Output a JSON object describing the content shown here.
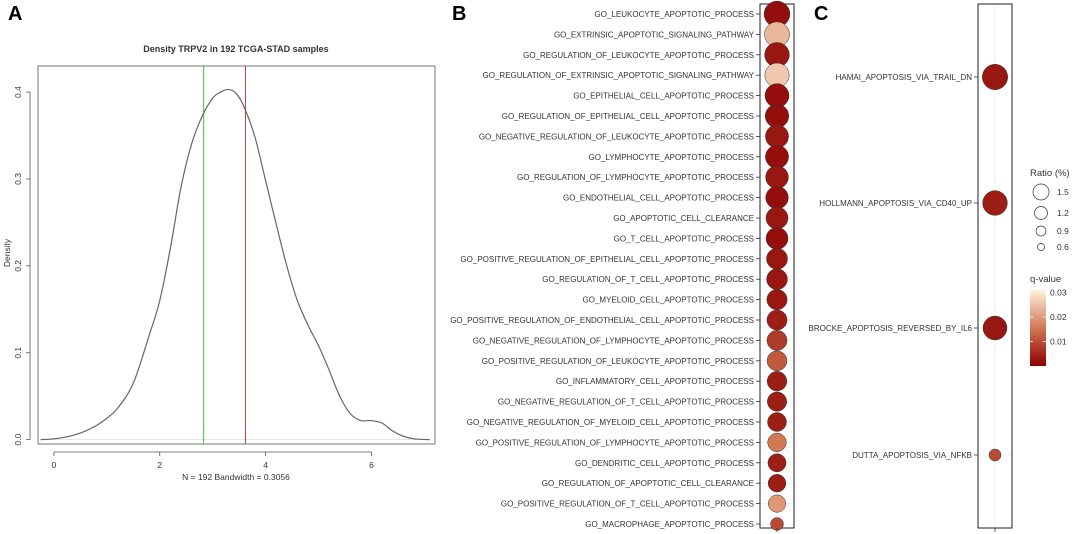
{
  "panels": {
    "a": "A",
    "b": "B",
    "c": "C"
  },
  "chart_data": [
    {
      "type": "line",
      "panel": "A",
      "title": "Density TRPV2 in 192 TCGA-STAD samples",
      "xlabel": "N = 192   Bandwidth = 0.3056",
      "ylabel": "Density",
      "xlim": [
        -0.3,
        7.2
      ],
      "ylim": [
        -0.005,
        0.43
      ],
      "xticks": [
        0,
        2,
        4,
        6
      ],
      "yticks": [
        0.0,
        0.1,
        0.2,
        0.3,
        0.4
      ],
      "series": [
        {
          "name": "density",
          "x": [
            -0.25,
            0.0,
            0.3,
            0.6,
            0.9,
            1.2,
            1.5,
            1.8,
            2.0,
            2.2,
            2.4,
            2.6,
            2.8,
            3.0,
            3.15,
            3.3,
            3.45,
            3.6,
            3.8,
            4.0,
            4.2,
            4.4,
            4.6,
            4.8,
            5.0,
            5.2,
            5.4,
            5.6,
            5.8,
            6.0,
            6.2,
            6.4,
            6.6,
            6.8,
            7.1
          ],
          "y": [
            0.0,
            0.001,
            0.004,
            0.01,
            0.02,
            0.036,
            0.065,
            0.12,
            0.16,
            0.22,
            0.29,
            0.34,
            0.372,
            0.393,
            0.4,
            0.403,
            0.398,
            0.382,
            0.348,
            0.298,
            0.248,
            0.2,
            0.16,
            0.132,
            0.108,
            0.08,
            0.05,
            0.03,
            0.022,
            0.022,
            0.019,
            0.01,
            0.004,
            0.001,
            0.0
          ]
        }
      ],
      "vlines": [
        {
          "x": 2.83,
          "color": "#33cc33"
        },
        {
          "x": 3.62,
          "color": "#cc4444"
        }
      ]
    },
    {
      "type": "scatter",
      "panel": "B",
      "categories": [
        "GO_LEUKOCYTE_APOPTOTIC_PROCESS",
        "GO_EXTRINSIC_APOPTOTIC_SIGNALING_PATHWAY",
        "GO_REGULATION_OF_LEUKOCYTE_APOPTOTIC_PROCESS",
        "GO_REGULATION_OF_EXTRINSIC_APOPTOTIC_SIGNALING_PATHWAY",
        "GO_EPITHELIAL_CELL_APOPTOTIC_PROCESS",
        "GO_REGULATION_OF_EPITHELIAL_CELL_APOPTOTIC_PROCESS",
        "GO_NEGATIVE_REGULATION_OF_LEUKOCYTE_APOPTOTIC_PROCESS",
        "GO_LYMPHOCYTE_APOPTOTIC_PROCESS",
        "GO_REGULATION_OF_LYMPHOCYTE_APOPTOTIC_PROCESS",
        "GO_ENDOTHELIAL_CELL_APOPTOTIC_PROCESS",
        "GO_APOPTOTIC_CELL_CLEARANCE",
        "GO_T_CELL_APOPTOTIC_PROCESS",
        "GO_POSITIVE_REGULATION_OF_EPITHELIAL_CELL_APOPTOTIC_PROCESS",
        "GO_REGULATION_OF_T_CELL_APOPTOTIC_PROCESS",
        "GO_MYELOID_CELL_APOPTOTIC_PROCESS",
        "GO_POSITIVE_REGULATION_OF_ENDOTHELIAL_CELL_APOPTOTIC_PROCESS",
        "GO_NEGATIVE_REGULATION_OF_LYMPHOCYTE_APOPTOTIC_PROCESS",
        "GO_POSITIVE_REGULATION_OF_LEUKOCYTE_APOPTOTIC_PROCESS",
        "GO_INFLAMMATORY_CELL_APOPTOTIC_PROCESS",
        "GO_NEGATIVE_REGULATION_OF_T_CELL_APOPTOTIC_PROCESS",
        "GO_NEGATIVE_REGULATION_OF_MYELOID_CELL_APOPTOTIC_PROCESS",
        "GO_POSITIVE_REGULATION_OF_LYMPHOCYTE_APOPTOTIC_PROCESS",
        "GO_DENDRITIC_CELL_APOPTOTIC_PROCESS",
        "GO_REGULATION_OF_APOPTOTIC_CELL_CLEARANCE",
        "GO_POSITIVE_REGULATION_OF_T_CELL_APOPTOTIC_PROCESS",
        "GO_MACROPHAGE_APOPTOTIC_PROCESS"
      ],
      "ratio": [
        1.6,
        1.5,
        1.45,
        1.4,
        1.35,
        1.3,
        1.25,
        1.25,
        1.2,
        1.18,
        1.12,
        1.1,
        1.0,
        0.98,
        0.92,
        0.9,
        0.9,
        0.88,
        0.85,
        0.82,
        0.78,
        0.75,
        0.7,
        0.66,
        0.64,
        0.3
      ],
      "qvalue": [
        0.002,
        0.024,
        0.003,
        0.026,
        0.002,
        0.002,
        0.003,
        0.002,
        0.003,
        0.002,
        0.003,
        0.002,
        0.003,
        0.003,
        0.003,
        0.004,
        0.008,
        0.012,
        0.004,
        0.004,
        0.004,
        0.016,
        0.004,
        0.004,
        0.02,
        0.01
      ]
    },
    {
      "type": "scatter",
      "panel": "C",
      "categories": [
        "HAMAI_APOPTOSIS_VIA_TRAIL_DN",
        "HOLLMANN_APOPTOSIS_VIA_CD40_UP",
        "BROCKE_APOPTOSIS_REVERSED_BY_IL6",
        "DUTTA_APOPTOSIS_VIA_NFKB"
      ],
      "ratio": [
        1.55,
        1.45,
        1.35,
        0.25
      ],
      "qvalue": [
        0.003,
        0.004,
        0.003,
        0.01
      ],
      "legend": {
        "size_title": "Ratio (%)",
        "size_values": [
          1.5,
          1.2,
          0.9,
          0.6
        ],
        "size_labels": [
          "1.5",
          "1.2",
          "0.9",
          "0.6"
        ],
        "color_title": "q-value",
        "color_values": [
          0.03,
          0.02,
          0.01
        ],
        "color_labels": [
          "0.03",
          "0.02",
          "0.01"
        ],
        "color_range": [
          0.0,
          0.031
        ],
        "color_low": "#8b0000",
        "color_high": "#fdf1dc"
      }
    }
  ]
}
